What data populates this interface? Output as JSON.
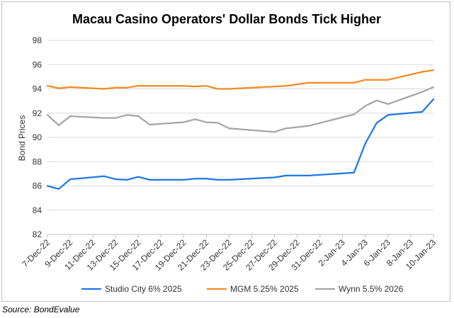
{
  "chart_data": {
    "type": "line",
    "title": "Macau Casino Operators' Dollar Bonds Tick Higher",
    "xlabel": "",
    "ylabel": "Bond Prices",
    "ylim": [
      82,
      98
    ],
    "yticks": [
      82,
      84,
      86,
      88,
      90,
      92,
      94,
      96,
      98
    ],
    "xlim": [
      "2022-12-07",
      "2023-01-10"
    ],
    "xticks": [
      "7-Dec-22",
      "9-Dec-22",
      "11-Dec-22",
      "13-Dec-22",
      "15-Dec-22",
      "17-Dec-22",
      "19-Dec-22",
      "21-Dec-22",
      "23-Dec-22",
      "25-Dec-22",
      "27-Dec-22",
      "29-Dec-22",
      "31-Dec-22",
      "2-Jan-23",
      "4-Jan-23",
      "6-Jan-23",
      "8-Jan-23",
      "10-Jan-23"
    ],
    "grid": "horizontal",
    "legend": "bottom",
    "series": [
      {
        "name": "Studio City 6% 2025",
        "color": "#1f77e6",
        "points": [
          [
            "2022-12-07",
            86.0
          ],
          [
            "2022-12-08",
            85.75
          ],
          [
            "2022-12-09",
            86.55
          ],
          [
            "2022-12-12",
            86.8
          ],
          [
            "2022-12-13",
            86.55
          ],
          [
            "2022-12-14",
            86.5
          ],
          [
            "2022-12-15",
            86.75
          ],
          [
            "2022-12-16",
            86.5
          ],
          [
            "2022-12-19",
            86.5
          ],
          [
            "2022-12-20",
            86.6
          ],
          [
            "2022-12-21",
            86.6
          ],
          [
            "2022-12-22",
            86.5
          ],
          [
            "2022-12-23",
            86.5
          ],
          [
            "2022-12-27",
            86.7
          ],
          [
            "2022-12-28",
            86.85
          ],
          [
            "2022-12-30",
            86.85
          ],
          [
            "2023-01-03",
            87.1
          ],
          [
            "2023-01-04",
            89.5
          ],
          [
            "2023-01-05",
            91.2
          ],
          [
            "2023-01-06",
            91.85
          ],
          [
            "2023-01-09",
            92.1
          ],
          [
            "2023-01-10",
            93.15
          ]
        ]
      },
      {
        "name": "MGM 5.25% 2025",
        "color": "#f28a1e",
        "points": [
          [
            "2022-12-07",
            94.25
          ],
          [
            "2022-12-08",
            94.05
          ],
          [
            "2022-12-09",
            94.15
          ],
          [
            "2022-12-12",
            94.0
          ],
          [
            "2022-12-13",
            94.1
          ],
          [
            "2022-12-14",
            94.1
          ],
          [
            "2022-12-15",
            94.25
          ],
          [
            "2022-12-16",
            94.25
          ],
          [
            "2022-12-19",
            94.25
          ],
          [
            "2022-12-20",
            94.2
          ],
          [
            "2022-12-21",
            94.25
          ],
          [
            "2022-12-22",
            94.0
          ],
          [
            "2022-12-23",
            94.0
          ],
          [
            "2022-12-27",
            94.2
          ],
          [
            "2022-12-28",
            94.25
          ],
          [
            "2022-12-30",
            94.5
          ],
          [
            "2023-01-03",
            94.5
          ],
          [
            "2023-01-04",
            94.75
          ],
          [
            "2023-01-05",
            94.75
          ],
          [
            "2023-01-06",
            94.75
          ],
          [
            "2023-01-09",
            95.4
          ],
          [
            "2023-01-10",
            95.55
          ]
        ]
      },
      {
        "name": "Wynn 5.5% 2026",
        "color": "#a5a5a5",
        "points": [
          [
            "2022-12-07",
            91.85
          ],
          [
            "2022-12-08",
            91.0
          ],
          [
            "2022-12-09",
            91.75
          ],
          [
            "2022-12-12",
            91.6
          ],
          [
            "2022-12-13",
            91.6
          ],
          [
            "2022-12-14",
            91.85
          ],
          [
            "2022-12-15",
            91.75
          ],
          [
            "2022-12-16",
            91.05
          ],
          [
            "2022-12-19",
            91.25
          ],
          [
            "2022-12-20",
            91.5
          ],
          [
            "2022-12-21",
            91.25
          ],
          [
            "2022-12-22",
            91.2
          ],
          [
            "2022-12-23",
            90.75
          ],
          [
            "2022-12-27",
            90.45
          ],
          [
            "2022-12-28",
            90.75
          ],
          [
            "2022-12-30",
            90.95
          ],
          [
            "2023-01-03",
            91.9
          ],
          [
            "2023-01-04",
            92.6
          ],
          [
            "2023-01-05",
            93.05
          ],
          [
            "2023-01-06",
            92.75
          ],
          [
            "2023-01-09",
            93.75
          ],
          [
            "2023-01-10",
            94.15
          ]
        ]
      }
    ]
  },
  "source": "Source: BondEvalue"
}
